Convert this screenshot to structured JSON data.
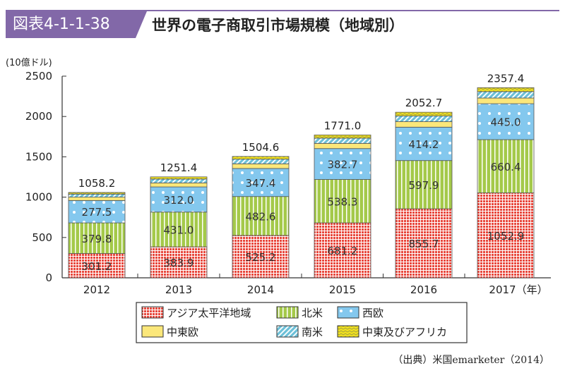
{
  "header": {
    "figure_number": "図表4-1-1-38",
    "title": "世界の電子商取引市場規模（地域別）"
  },
  "source": "（出典）米国emarketer（2014）",
  "chart_data": {
    "type": "bar",
    "stacked": true,
    "title": "世界の電子商取引市場規模（地域別）",
    "ylabel": "(10億ドル)",
    "xlabel": "(年)",
    "ylim": [
      0,
      2500
    ],
    "yticks": [
      0,
      500,
      1000,
      1500,
      2000,
      2500
    ],
    "categories": [
      "2012",
      "2013",
      "2014",
      "2015",
      "2016",
      "2017"
    ],
    "category_labels": [
      "2012",
      "2013",
      "2014",
      "2015",
      "2016",
      "2017（年）"
    ],
    "totals": [
      1058.2,
      1251.4,
      1504.6,
      1771.0,
      2052.7,
      2357.4
    ],
    "legend_position": "bottom",
    "series": [
      {
        "name": "アジア太平洋地域",
        "values": [
          301.2,
          383.9,
          525.2,
          681.2,
          855.7,
          1052.9
        ],
        "color": "#e8473c",
        "pattern": "grid",
        "labeled": true
      },
      {
        "name": "北米",
        "values": [
          379.8,
          431.0,
          482.6,
          538.3,
          597.9,
          660.4
        ],
        "color": "#a4c94a",
        "pattern": "vertical-stripes",
        "labeled": true
      },
      {
        "name": "西欧",
        "values": [
          277.5,
          312.0,
          347.4,
          382.7,
          414.2,
          445.0
        ],
        "color": "#84c8ee",
        "pattern": "dots",
        "labeled": true
      },
      {
        "name": "中東欧",
        "values": [
          41.5,
          49.4,
          58.0,
          64.4,
          68.0,
          70.6
        ],
        "color": "#fbe77a",
        "pattern": "solid",
        "labeled": false
      },
      {
        "name": "南米",
        "values": [
          37.6,
          48.1,
          57.7,
          64.9,
          71.6,
          79.7
        ],
        "color": "#6cc0d8",
        "pattern": "diagonal",
        "labeled": false
      },
      {
        "name": "中東及びアフリカ",
        "values": [
          20.6,
          27.0,
          33.7,
          39.5,
          45.3,
          48.8
        ],
        "color": "#f0e020",
        "pattern": "wave",
        "labeled": false
      }
    ]
  }
}
